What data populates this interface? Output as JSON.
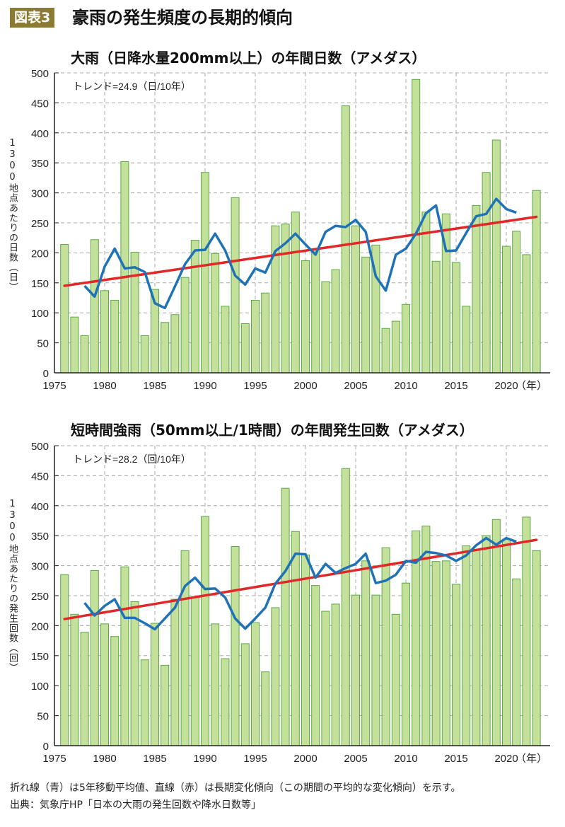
{
  "header": {
    "badge": "図表3",
    "title": "豪雨の発生頻度の長期的傾向"
  },
  "notes": {
    "line1": "折れ線（青）は5年移動平均値、直線（赤）は長期変化傾向（この期間の平均的な変化傾向）を示す。",
    "line2": "出典：気象庁HP「日本の大雨の発生回数や降水日数等」"
  },
  "colors": {
    "bar_fill": "#c5e09b",
    "bar_stroke": "#5aaa45",
    "moving_avg": "#1f72b5",
    "trend": "#e02828",
    "badge": "#8a7a32"
  },
  "chart_data": [
    {
      "type": "bar",
      "title": "大雨（日降水量200mm以上）の年間日数（アメダス）",
      "ylabel": "1300地点あたりの日数（日）",
      "xlabel": "（年）",
      "annotation": "トレンド=24.9（日/10年）",
      "ylim": [
        0,
        500
      ],
      "xlim": [
        1975,
        2024
      ],
      "y_ticks": [
        "0",
        "50",
        "100",
        "150",
        "200",
        "250",
        "300",
        "350",
        "400",
        "450",
        "500"
      ],
      "x_ticks": [
        "1975",
        "1980",
        "1985",
        "1990",
        "1995",
        "2000",
        "2005",
        "2010",
        "2015",
        "2020"
      ],
      "grid": true,
      "years_start": 1976,
      "values": [
        214,
        93,
        62,
        222,
        137,
        121,
        352,
        201,
        62,
        139,
        84,
        97,
        159,
        221,
        334,
        199,
        111,
        292,
        82,
        121,
        133,
        245,
        248,
        268,
        187,
        205,
        152,
        172,
        445,
        245,
        193,
        213,
        74,
        86,
        114,
        489,
        268,
        186,
        265,
        184,
        111,
        279,
        334,
        388,
        211,
        236,
        197,
        304
      ],
      "moving_average": {
        "name": "5年移動平均",
        "start": 1978,
        "values": [
          145,
          127,
          177,
          207,
          174,
          176,
          168,
          116,
          108,
          144,
          181,
          204,
          205,
          232,
          204,
          162,
          147,
          174,
          167,
          203,
          216,
          232,
          214,
          197,
          235,
          245,
          243,
          255,
          235,
          161,
          137,
          197,
          207,
          232,
          266,
          279,
          203,
          204,
          233,
          261,
          265,
          290,
          273,
          267
        ]
      },
      "trend": {
        "name": "長期変化傾向",
        "from": [
          1976,
          145
        ],
        "to": [
          2023,
          260
        ]
      }
    },
    {
      "type": "bar",
      "title": "短時間強雨（50mm以上/1時間）の年間発生回数（アメダス）",
      "ylabel": "1300地点あたりの発生回数（回）",
      "xlabel": "（年）",
      "annotation": "トレンド=28.2（回/10年）",
      "ylim": [
        0,
        500
      ],
      "xlim": [
        1975,
        2024
      ],
      "y_ticks": [
        "0",
        "50",
        "100",
        "150",
        "200",
        "250",
        "300",
        "350",
        "400",
        "450",
        "500"
      ],
      "x_ticks": [
        "1975",
        "1980",
        "1985",
        "1990",
        "1995",
        "2000",
        "2005",
        "2010",
        "2015",
        "2020"
      ],
      "grid": true,
      "years_start": 1976,
      "values": [
        285,
        219,
        189,
        292,
        203,
        182,
        298,
        240,
        143,
        204,
        134,
        244,
        325,
        247,
        382,
        203,
        145,
        332,
        170,
        205,
        123,
        230,
        429,
        357,
        318,
        267,
        224,
        236,
        462,
        251,
        308,
        251,
        330,
        219,
        271,
        358,
        366,
        307,
        308,
        269,
        333,
        326,
        350,
        377,
        344,
        278,
        381,
        325
      ],
      "moving_average": {
        "name": "5年移動平均",
        "start": 1978,
        "values": [
          238,
          217,
          233,
          244,
          213,
          213,
          204,
          194,
          212,
          230,
          266,
          280,
          261,
          262,
          247,
          212,
          195,
          212,
          230,
          270,
          291,
          320,
          319,
          280,
          303,
          288,
          296,
          303,
          320,
          271,
          275,
          285,
          308,
          305,
          323,
          321,
          317,
          308,
          317,
          334,
          346,
          335,
          346,
          340
        ]
      },
      "trend": {
        "name": "長期変化傾向",
        "from": [
          1976,
          211
        ],
        "to": [
          2023,
          343
        ]
      }
    }
  ]
}
